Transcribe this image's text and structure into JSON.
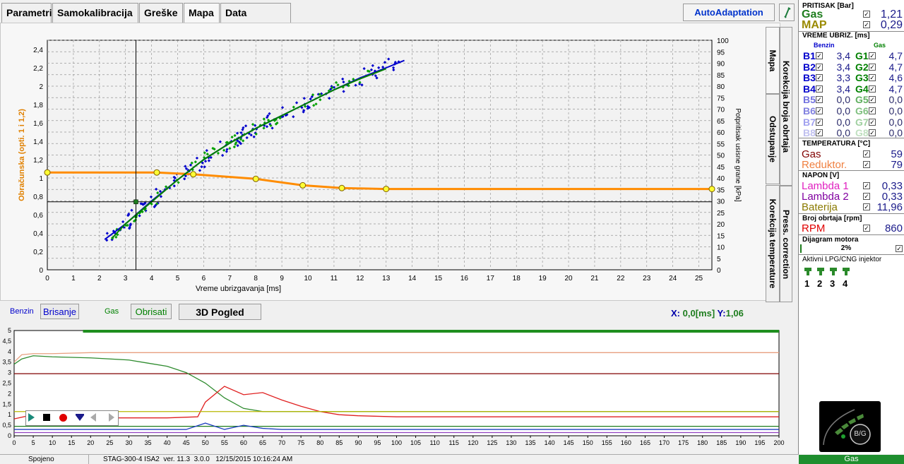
{
  "tabs": [
    {
      "label": "Parametri",
      "x": 2,
      "w": 71
    },
    {
      "label": "Samokalibracija",
      "x": 74,
      "w": 122
    },
    {
      "label": "Greške",
      "x": 197,
      "w": 62
    },
    {
      "label": "Mapa",
      "x": 260,
      "w": 51,
      "active": true
    },
    {
      "label": "Data recorder",
      "x": 312,
      "w": 100
    }
  ],
  "autoadapt_label": "AutoAdaptation",
  "side_tabs": {
    "mapa": "Mapa",
    "korekcija_obrtaja": "Korekcija broja obrtaja",
    "odstupanje": "Odstupanje",
    "korekcija_temp": "Korekcija temperature",
    "press": "Press. correction"
  },
  "map_chart": {
    "xlabel": "Vreme ubrizgavanja [ms]",
    "ylabel_left": "Obračunska (opti. 1 i 1,2)",
    "ylabel_right": "Potpritisak usisne grane [kPa]",
    "x_ticks": [
      "0",
      "1",
      "2",
      "3",
      "4",
      "5",
      "6",
      "7",
      "8",
      "9",
      "10",
      "11",
      "12",
      "13",
      "14",
      "15",
      "16",
      "17",
      "18",
      "19",
      "20",
      "21",
      "22",
      "23",
      "24",
      "25"
    ],
    "y_left_ticks": [
      "0",
      "0,2",
      "0,4",
      "0,6",
      "0,8",
      "1",
      "1,2",
      "1,4",
      "1,6",
      "1,8",
      "2",
      "2,2",
      "2,4"
    ],
    "y_right_ticks": [
      "0",
      "5",
      "10",
      "15",
      "20",
      "25",
      "30",
      "35",
      "40",
      "45",
      "50",
      "55",
      "60",
      "65",
      "70",
      "75",
      "80",
      "85",
      "90",
      "95",
      "100"
    ]
  },
  "chart_data": [
    {
      "type": "line",
      "title": "",
      "xlabel": "Vreme ubrizgavanja [ms]",
      "ylabel": "Obračunska (opti. 1 i 1,2)",
      "ylabel_right": "Potpritisak usisne grane [kPa]",
      "xlim": [
        0,
        25.5
      ],
      "ylim": [
        0,
        2.5
      ],
      "ylim_right": [
        0,
        100
      ],
      "series": [
        {
          "color": "#ff8c00",
          "x": [
            0,
            4.2,
            5.6,
            8,
            9.8,
            11.3,
            13,
            25.5
          ],
          "y": [
            1.06,
            1.06,
            1.04,
            0.99,
            0.92,
            0.89,
            0.88,
            0.88
          ]
        },
        {
          "color": "#0000cc",
          "x": [
            2.2,
            3,
            4,
            5,
            6,
            7,
            8,
            9,
            10,
            11,
            12,
            13,
            13.7
          ],
          "y": [
            0.33,
            0.5,
            0.75,
            0.98,
            1.2,
            1.38,
            1.54,
            1.68,
            1.82,
            1.96,
            2.09,
            2.2,
            2.28
          ]
        },
        {
          "color": "#008000",
          "x": [
            2.5,
            3,
            4,
            5,
            6,
            7,
            8,
            9,
            10,
            11,
            12,
            13
          ],
          "y": [
            0.35,
            0.5,
            0.74,
            0.98,
            1.2,
            1.38,
            1.54,
            1.68,
            1.82,
            1.96,
            2.08,
            2.19
          ]
        }
      ],
      "cursor": {
        "x": 3.4,
        "y": 0.74
      }
    },
    {
      "type": "line",
      "title": "",
      "xlim": [
        0,
        200
      ],
      "ylim": [
        0,
        5
      ],
      "x_ticks": [
        "0",
        "5",
        "10",
        "15",
        "20",
        "25",
        "30",
        "35",
        "40",
        "45",
        "50",
        "55",
        "60",
        "65",
        "70",
        "75",
        "80",
        "85",
        "90",
        "95",
        "100",
        "105",
        "110",
        "115",
        "120",
        "125",
        "130",
        "135",
        "140",
        "145",
        "150",
        "155",
        "160",
        "165",
        "170",
        "175",
        "180",
        "185",
        "190",
        "195",
        "200"
      ],
      "y_ticks": [
        "0",
        "0,5",
        "1",
        "1,5",
        "2",
        "2,5",
        "3",
        "3,5",
        "4",
        "4,5",
        "5"
      ],
      "series": [
        {
          "color": "#e8a080",
          "x": [
            0,
            2,
            5,
            10,
            20,
            40,
            50,
            60,
            100,
            150,
            200
          ],
          "y": [
            3.5,
            3.85,
            3.9,
            3.9,
            3.95,
            3.95,
            3.95,
            3.95,
            3.95,
            3.95,
            3.95
          ]
        },
        {
          "color": "#800000",
          "x": [
            0,
            200
          ],
          "y": [
            2.95,
            2.95
          ]
        },
        {
          "color": "#2e8b2e",
          "x": [
            0,
            2,
            5,
            10,
            20,
            30,
            35,
            40,
            45,
            50,
            55,
            60,
            65,
            70,
            75,
            200
          ],
          "y": [
            3.4,
            3.65,
            3.8,
            3.75,
            3.7,
            3.6,
            3.45,
            3.3,
            3.0,
            2.5,
            1.8,
            1.3,
            1.15,
            1.15,
            1.15,
            1.15
          ]
        },
        {
          "color": "#e02020",
          "x": [
            0,
            5,
            10,
            20,
            40,
            48,
            50,
            55,
            60,
            65,
            70,
            75,
            80,
            85,
            90,
            100,
            200
          ],
          "y": [
            0.8,
            1.0,
            1.0,
            0.85,
            0.85,
            0.9,
            1.6,
            2.35,
            1.95,
            2.05,
            1.7,
            1.4,
            1.15,
            1.0,
            0.95,
            0.9,
            0.9
          ]
        },
        {
          "color": "#b8b800",
          "x": [
            0,
            200
          ],
          "y": [
            1.15,
            1.15
          ]
        },
        {
          "color": "#1e7d1e",
          "x": [
            0,
            200
          ],
          "y": [
            0.45,
            0.45
          ]
        },
        {
          "color": "#2040c0",
          "x": [
            0,
            45,
            50,
            55,
            60,
            65,
            70,
            200
          ],
          "y": [
            0.3,
            0.3,
            0.6,
            0.3,
            0.5,
            0.35,
            0.3,
            0.3
          ]
        },
        {
          "color": "#9040c0",
          "x": [
            0,
            200
          ],
          "y": [
            0.15,
            0.15
          ]
        }
      ]
    }
  ],
  "under_chart": {
    "benzin_label": "Benzin",
    "brisanje_label": "Brisanje",
    "gas_label": "Gas",
    "obrisati_label": "Obrisati",
    "pogled_label": "3D Pogled",
    "x_label": "X:",
    "x_value": "0,0[ms]",
    "y_label": "Y:",
    "y_value": "1,06"
  },
  "right_panel": {
    "pritisak_title": "PRITISAK [Bar]",
    "gas_label": "Gas",
    "gas_value": "1,21",
    "map_label": "MAP",
    "map_value": "0,29",
    "vreme_title": "VREME UBRIZ. [ms]",
    "benzin_col": "Benzin",
    "gas_col": "Gas",
    "inj": [
      {
        "b": "B1",
        "bv": "3,4",
        "g": "G1",
        "gv": "4,7"
      },
      {
        "b": "B2",
        "bv": "3,4",
        "g": "G2",
        "gv": "4,7"
      },
      {
        "b": "B3",
        "bv": "3,3",
        "g": "G3",
        "gv": "4,6"
      },
      {
        "b": "B4",
        "bv": "3,4",
        "g": "G4",
        "gv": "4,7"
      },
      {
        "b": "B5",
        "bv": "0,0",
        "g": "G5",
        "gv": "0,0"
      },
      {
        "b": "B6",
        "bv": "0,0",
        "g": "G6",
        "gv": "0,0"
      },
      {
        "b": "B7",
        "bv": "0,0",
        "g": "G7",
        "gv": "0,0"
      },
      {
        "b": "B8",
        "bv": "0,0",
        "g": "G8",
        "gv": "0,0"
      }
    ],
    "temp_title": "TEMPERATURA [°C]",
    "temp_gas_label": "Gas",
    "temp_gas_value": "59",
    "temp_red_label": "Reduktor.",
    "temp_red_value": "79",
    "napon_title": "NAPON [V]",
    "lambda1_label": "Lambda 1",
    "lambda1_value": "0,33",
    "lambda2_label": "Lambda 2",
    "lambda2_value": "0,33",
    "baterija_label": "Baterija",
    "baterija_value": "11,96",
    "obrtaja_title": "Broj obrtaja [rpm]",
    "rpm_label": "RPM",
    "rpm_value": "860",
    "dijagram_title": "Dijagram motora",
    "dijagram_value": "2%",
    "aktivni_title": "Aktivni LPG/CNG injektor",
    "injectors": [
      "1",
      "2",
      "3",
      "4"
    ],
    "bg_label": "B/G",
    "gas_status": "Gas"
  },
  "status_bar": {
    "connection": "Spojeno",
    "device": "STAG-300-4 ISA2",
    "version": "ver. 11.3",
    "sub": "3.0.0",
    "datetime": "12/15/2015 10:16:24 AM"
  },
  "colors": {
    "orange": "#ff8c00",
    "blue": "#0000cc",
    "green": "#008000",
    "dark_green": "#1e7d1e"
  }
}
